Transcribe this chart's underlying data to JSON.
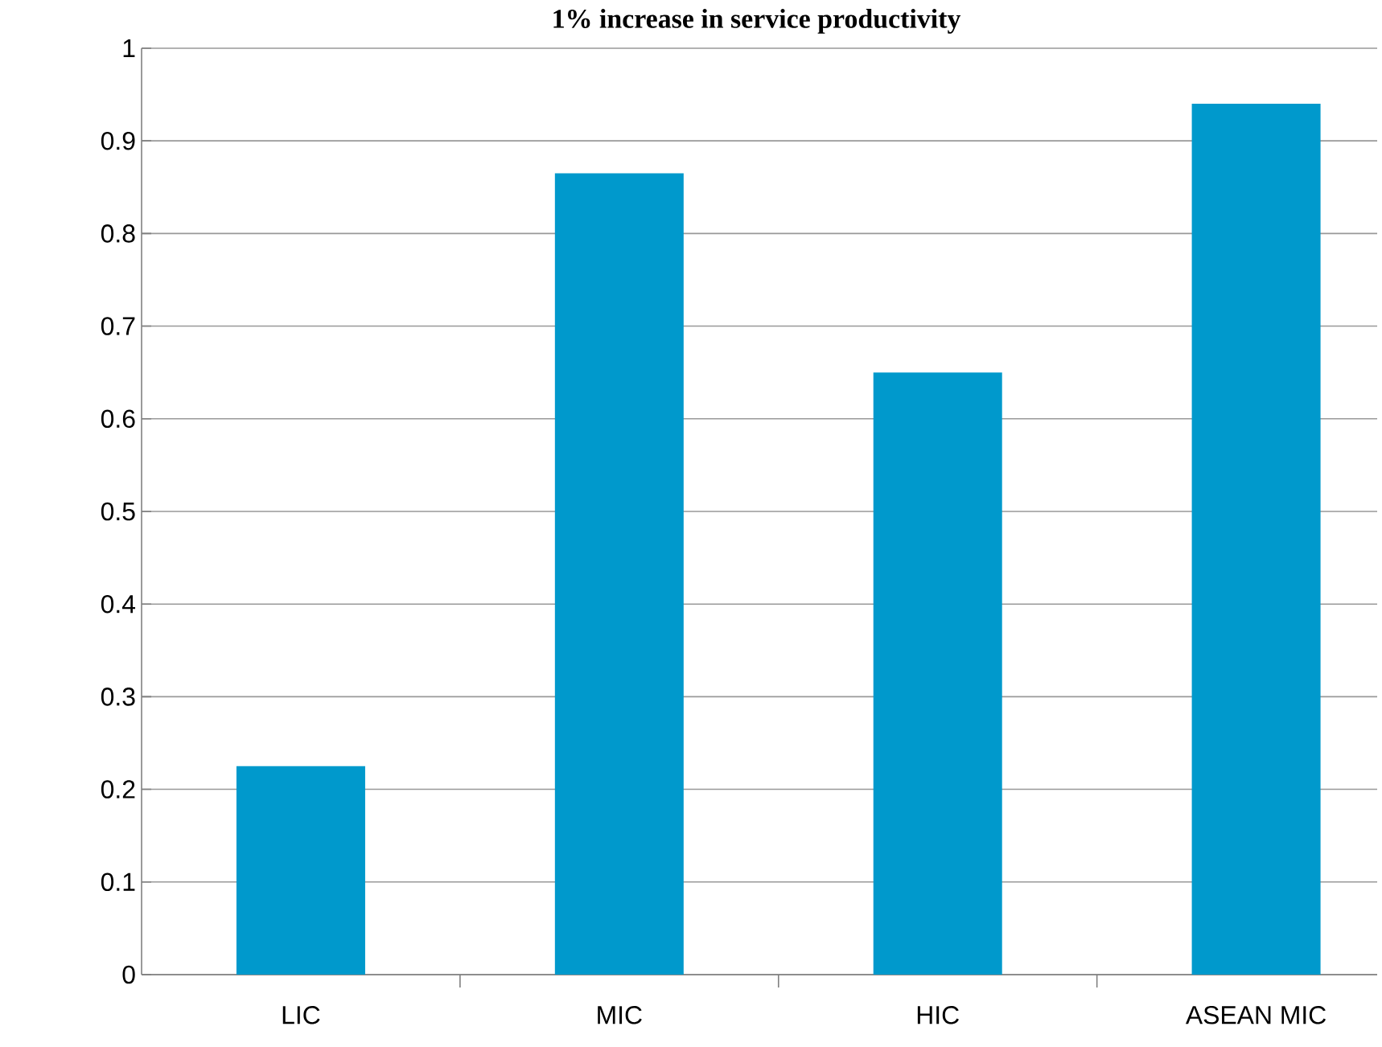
{
  "chart_data": {
    "type": "bar",
    "title": "1% increase in service productivity",
    "categories": [
      "LIC",
      "MIC",
      "HIC",
      "ASEAN MIC"
    ],
    "values": [
      0.225,
      0.865,
      0.65,
      0.94
    ],
    "color": "#0099cc",
    "ylim": [
      0,
      1
    ],
    "yticks": [
      0,
      0.1,
      0.2,
      0.3,
      0.4,
      0.5,
      0.6,
      0.7,
      0.8,
      0.9,
      1
    ],
    "grid": "y"
  }
}
